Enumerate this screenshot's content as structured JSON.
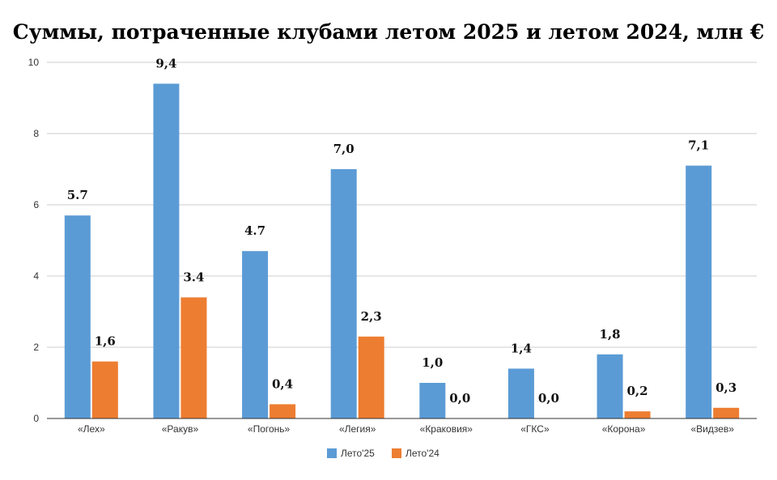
{
  "chart_data": {
    "type": "bar",
    "title": "Суммы, потраченные клубами летом 2025 и летом 2024, млн €",
    "xlabel": "",
    "ylabel": "",
    "ylim": [
      0,
      10
    ],
    "yticks": [
      0,
      2,
      4,
      6,
      8,
      10
    ],
    "categories": [
      "«Лех»",
      "«Ракув»",
      "«Погонь»",
      "«Легия»",
      "«Краковия»",
      "«ГКС»",
      "«Корона»",
      "«Видзев»"
    ],
    "series": [
      {
        "name": "Лето'25",
        "color": "#5b9bd5",
        "values": [
          5.7,
          9.4,
          4.7,
          7.0,
          1.0,
          1.4,
          1.8,
          7.1
        ],
        "labels": [
          "5.7",
          "9,4",
          "4.7",
          "7,0",
          "1,0",
          "1,4",
          "1,8",
          "7,1"
        ]
      },
      {
        "name": "Лето'24",
        "color": "#ed7d31",
        "values": [
          1.6,
          3.4,
          0.4,
          2.3,
          0.0,
          0.0,
          0.2,
          0.3
        ],
        "labels": [
          "1,6",
          "3.4",
          "0,4",
          "2,3",
          "0,0",
          "0,0",
          "0,2",
          "0,3"
        ]
      }
    ],
    "legend_position": "bottom",
    "grid": true
  }
}
